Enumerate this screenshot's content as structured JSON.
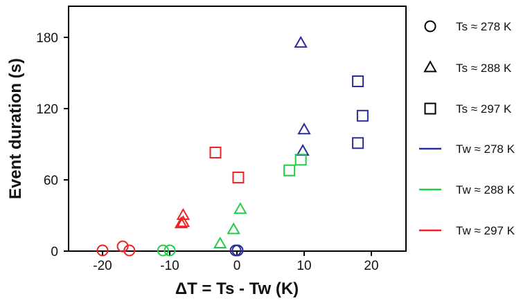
{
  "chart_data": {
    "type": "scatter",
    "title": "",
    "xlabel": "ΔT = Ts - Tw (K)",
    "ylabel": "Event duration (s)",
    "xlim": [
      -25,
      25
    ],
    "ylim": [
      0,
      210
    ],
    "xticks": [
      -20,
      -10,
      0,
      10,
      20
    ],
    "yticks": [
      0,
      60,
      120,
      180
    ],
    "xtick_labels": [
      "-20",
      "-10",
      "0",
      "10",
      "20"
    ],
    "ytick_labels": [
      "0",
      "60",
      "120",
      "180"
    ],
    "grid": false,
    "legend_position": "right",
    "series": [
      {
        "name": "Ts ≈ 278 K, Tw ≈ 278 K",
        "Ts": "278 K",
        "Tw": "278 K",
        "marker": "circle",
        "color": "#2b2b9b",
        "points": [
          {
            "x": -0.2,
            "y": 0.5
          },
          {
            "x": 0.1,
            "y": 0.5
          }
        ]
      },
      {
        "name": "Ts ≈ 278 K, Tw ≈ 288 K",
        "Ts": "278 K",
        "Tw": "288 K",
        "marker": "circle",
        "color": "#22cc44",
        "points": [
          {
            "x": -11,
            "y": 0.5
          },
          {
            "x": -10,
            "y": 0.5
          }
        ]
      },
      {
        "name": "Ts ≈ 278 K, Tw ≈ 297 K",
        "Ts": "278 K",
        "Tw": "297 K",
        "marker": "circle",
        "color": "#ee2222",
        "points": [
          {
            "x": -20,
            "y": 0.5
          },
          {
            "x": -17,
            "y": 4
          },
          {
            "x": -16,
            "y": 0.5
          }
        ]
      },
      {
        "name": "Ts ≈ 288 K, Tw ≈ 278 K",
        "Ts": "288 K",
        "Tw": "278 K",
        "marker": "triangle",
        "color": "#2b2b9b",
        "points": [
          {
            "x": 9.5,
            "y": 175
          },
          {
            "x": 10,
            "y": 102
          },
          {
            "x": 9.8,
            "y": 84
          }
        ]
      },
      {
        "name": "Ts ≈ 288 K, Tw ≈ 288 K",
        "Ts": "288 K",
        "Tw": "288 K",
        "marker": "triangle",
        "color": "#22cc44",
        "points": [
          {
            "x": -2.5,
            "y": 6
          },
          {
            "x": -0.5,
            "y": 18
          },
          {
            "x": 0.5,
            "y": 35
          }
        ]
      },
      {
        "name": "Ts ≈ 288 K, Tw ≈ 297 K",
        "Ts": "288 K",
        "Tw": "297 K",
        "marker": "triangle",
        "color": "#ee2222",
        "points": [
          {
            "x": -8,
            "y": 30
          },
          {
            "x": -8,
            "y": 24
          },
          {
            "x": -8.3,
            "y": 23
          }
        ]
      },
      {
        "name": "Ts ≈ 297 K, Tw ≈ 278 K",
        "Ts": "297 K",
        "Tw": "278 K",
        "marker": "square",
        "color": "#2b2b9b",
        "points": [
          {
            "x": 18,
            "y": 143
          },
          {
            "x": 18.7,
            "y": 114
          },
          {
            "x": 18,
            "y": 91
          }
        ]
      },
      {
        "name": "Ts ≈ 297 K, Tw ≈ 288 K",
        "Ts": "297 K",
        "Tw": "288 K",
        "marker": "square",
        "color": "#22cc44",
        "points": [
          {
            "x": 7.8,
            "y": 68
          },
          {
            "x": 9.5,
            "y": 77
          }
        ]
      },
      {
        "name": "Ts ≈ 297 K, Tw ≈ 297 K",
        "Ts": "297 K",
        "Tw": "297 K",
        "marker": "square",
        "color": "#ee2222",
        "points": [
          {
            "x": -3.2,
            "y": 83
          },
          {
            "x": 0.2,
            "y": 62
          }
        ]
      }
    ],
    "legend": [
      {
        "kind": "marker",
        "marker": "circle",
        "label": "Ts ≈ 278 K"
      },
      {
        "kind": "marker",
        "marker": "triangle",
        "label": "Ts ≈ 288 K"
      },
      {
        "kind": "marker",
        "marker": "square",
        "label": "Ts ≈ 297 K"
      },
      {
        "kind": "line",
        "color": "#2b2b9b",
        "label": "Tw ≈ 278 K"
      },
      {
        "kind": "line",
        "color": "#22cc44",
        "label": "Tw ≈ 288 K"
      },
      {
        "kind": "line",
        "color": "#ee2222",
        "label": "Tw ≈ 297 K"
      }
    ],
    "colors": {
      "Tw ≈ 278 K": "#2b2b9b",
      "Tw ≈ 288 K": "#22cc44",
      "Tw ≈ 297 K": "#ee2222",
      "axis": "#000000"
    }
  }
}
